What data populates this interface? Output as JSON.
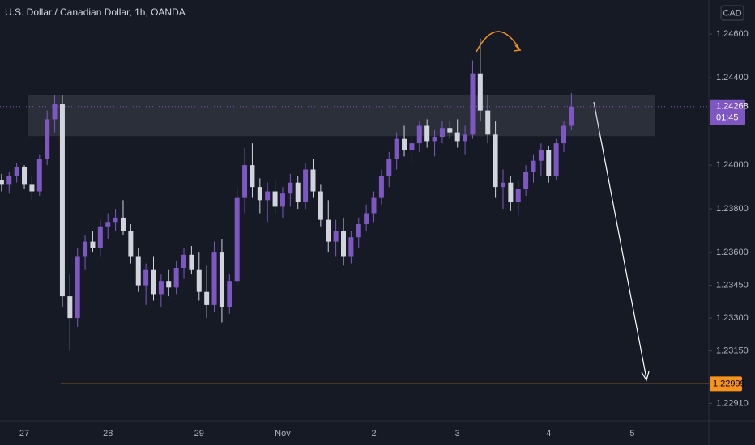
{
  "chart_data": {
    "type": "candlestick",
    "title": "U.S. Dollar / Canadian Dollar, 1h, OANDA",
    "currency": "CAD",
    "up_color": "#7e57c2",
    "down_color": "#d1d4dc",
    "categories": [
      null,
      null,
      null,
      "27",
      null,
      null,
      null,
      null,
      null,
      null,
      null,
      null,
      null,
      null,
      "28",
      null,
      null,
      null,
      null,
      null,
      null,
      null,
      null,
      null,
      null,
      null,
      "29",
      null,
      null,
      null,
      null,
      null,
      null,
      null,
      null,
      null,
      null,
      "Nov",
      null,
      null,
      null,
      null,
      null,
      null,
      null,
      null,
      null,
      null,
      null,
      "2",
      null,
      null,
      null,
      null,
      null,
      null,
      null,
      null,
      null,
      null,
      "3",
      null,
      null,
      null,
      null,
      null,
      null,
      null,
      null,
      null,
      null,
      null,
      "4",
      null,
      null,
      null,
      null,
      null,
      null,
      null,
      null,
      null,
      null,
      "5",
      null,
      null,
      null,
      null,
      null,
      null,
      null,
      null
    ],
    "open": [
      1.2393,
      1.2391,
      1.2395,
      1.2399,
      1.2391,
      1.2388,
      1.2403,
      1.2421,
      1.2428,
      1.234,
      1.233,
      1.2358,
      1.2365,
      1.2362,
      1.2372,
      1.2374,
      1.2376,
      1.237,
      1.2358,
      1.2345,
      1.2352,
      1.2341,
      1.2347,
      1.2344,
      1.2353,
      1.2359,
      1.2352,
      1.2342,
      1.2336,
      1.236,
      1.2335,
      1.2347,
      1.2385,
      1.24,
      1.239,
      1.2384,
      1.2388,
      1.2381,
      1.2387,
      1.2392,
      1.2383,
      1.2398,
      1.2388,
      1.2375,
      1.2365,
      1.237,
      1.2358,
      1.2367,
      1.2373,
      1.2378,
      1.2385,
      1.2395,
      1.2403,
      1.2412,
      1.2407,
      1.241,
      1.2418,
      1.2411,
      1.2413,
      1.2417,
      1.2415,
      1.2411,
      1.2414,
      1.2442,
      1.2425,
      1.2414,
      1.239,
      1.2392,
      1.2383,
      1.2389,
      1.2397,
      1.2402,
      1.2407,
      1.2395,
      1.241,
      1.2418,
      null,
      null,
      null,
      null,
      null,
      null,
      null,
      null,
      null,
      null,
      null,
      null,
      null,
      null,
      null,
      null
    ],
    "high": [
      1.2396,
      1.2397,
      1.2401,
      1.24,
      1.2395,
      1.2405,
      1.2425,
      1.2432,
      1.2432,
      1.235,
      1.2362,
      1.2368,
      1.237,
      1.2375,
      1.2378,
      1.238,
      1.2384,
      1.2373,
      1.2362,
      1.2355,
      1.2358,
      1.235,
      1.2352,
      1.2356,
      1.2362,
      1.2363,
      1.236,
      1.2354,
      1.2365,
      1.2366,
      1.235,
      1.239,
      1.2408,
      1.241,
      1.2394,
      1.2392,
      1.2393,
      1.239,
      1.2396,
      1.2395,
      1.2401,
      1.2403,
      1.2391,
      1.2384,
      1.2375,
      1.2376,
      1.237,
      1.2376,
      1.2382,
      1.2388,
      1.2398,
      1.2406,
      1.2415,
      1.2418,
      1.2413,
      1.242,
      1.2421,
      1.2416,
      1.242,
      1.242,
      1.2421,
      1.2418,
      1.2448,
      1.2458,
      1.2432,
      1.242,
      1.2398,
      1.2395,
      1.2393,
      1.24,
      1.2405,
      1.241,
      1.2409,
      1.2412,
      1.242,
      1.2433,
      null,
      null,
      null,
      null,
      null,
      null,
      null,
      null,
      null,
      null,
      null,
      null,
      null,
      null,
      null,
      null
    ],
    "low": [
      1.2388,
      1.2387,
      1.2392,
      1.2389,
      1.2384,
      1.2386,
      1.24,
      1.2415,
      1.2335,
      1.2315,
      1.2326,
      1.2352,
      1.236,
      1.2358,
      1.2366,
      1.237,
      1.2368,
      1.2355,
      1.2342,
      1.2336,
      1.2338,
      1.2335,
      1.234,
      1.2341,
      1.2348,
      1.235,
      1.2338,
      1.233,
      1.2333,
      1.2328,
      1.2332,
      1.2345,
      1.2378,
      1.2385,
      1.2378,
      1.2374,
      1.2378,
      1.2376,
      1.2381,
      1.238,
      1.238,
      1.2385,
      1.2372,
      1.236,
      1.2358,
      1.2354,
      1.2355,
      1.2362,
      1.237,
      1.2374,
      1.2382,
      1.239,
      1.2398,
      1.2404,
      1.24,
      1.2406,
      1.2408,
      1.2404,
      1.241,
      1.2412,
      1.2408,
      1.2405,
      1.2412,
      1.242,
      1.241,
      1.2385,
      1.238,
      1.2379,
      1.2377,
      1.2386,
      1.2392,
      1.2395,
      1.2392,
      1.2393,
      1.2406,
      1.2416,
      null,
      null,
      null,
      null,
      null,
      null,
      null,
      null,
      null,
      null,
      null,
      null,
      null,
      null,
      null,
      null
    ],
    "close": [
      1.2391,
      1.2395,
      1.2399,
      1.2391,
      1.2388,
      1.2403,
      1.2421,
      1.2428,
      1.234,
      1.233,
      1.2358,
      1.2365,
      1.2362,
      1.2372,
      1.2374,
      1.2376,
      1.237,
      1.2358,
      1.2345,
      1.2352,
      1.2341,
      1.2347,
      1.2344,
      1.2353,
      1.2359,
      1.2352,
      1.2342,
      1.2336,
      1.236,
      1.2335,
      1.2347,
      1.2385,
      1.24,
      1.239,
      1.2384,
      1.2388,
      1.2381,
      1.2387,
      1.2392,
      1.2383,
      1.2398,
      1.2388,
      1.2375,
      1.2365,
      1.237,
      1.2358,
      1.2367,
      1.2373,
      1.2378,
      1.2385,
      1.2395,
      1.2403,
      1.2412,
      1.2407,
      1.241,
      1.2418,
      1.2411,
      1.2413,
      1.2417,
      1.2415,
      1.2411,
      1.2414,
      1.2442,
      1.2425,
      1.2414,
      1.239,
      1.2392,
      1.2383,
      1.2389,
      1.2397,
      1.2402,
      1.2407,
      1.2395,
      1.241,
      1.2418,
      1.24268,
      null,
      null,
      null,
      null,
      null,
      null,
      null,
      null,
      null,
      null,
      null,
      null,
      null,
      null,
      null,
      null
    ],
    "ylim": [
      1.2283,
      1.24756
    ],
    "yticks": [
      {
        "value": 1.246,
        "label": "1.24600"
      },
      {
        "value": 1.244,
        "label": "1.24400"
      },
      {
        "value": 1.24,
        "label": "1.24000"
      },
      {
        "value": 1.238,
        "label": "1.23800"
      },
      {
        "value": 1.236,
        "label": "1.23600"
      },
      {
        "value": 1.2345,
        "label": "1.23450"
      },
      {
        "value": 1.233,
        "label": "1.23300"
      },
      {
        "value": 1.2315,
        "label": "1.23150"
      },
      {
        "value": 1.2291,
        "label": "1.22910"
      }
    ],
    "resistance_zone": [
      1.24133,
      1.24322
    ],
    "support_line": 1.22999,
    "last_price": 1.24268,
    "countdown": "01:45"
  }
}
